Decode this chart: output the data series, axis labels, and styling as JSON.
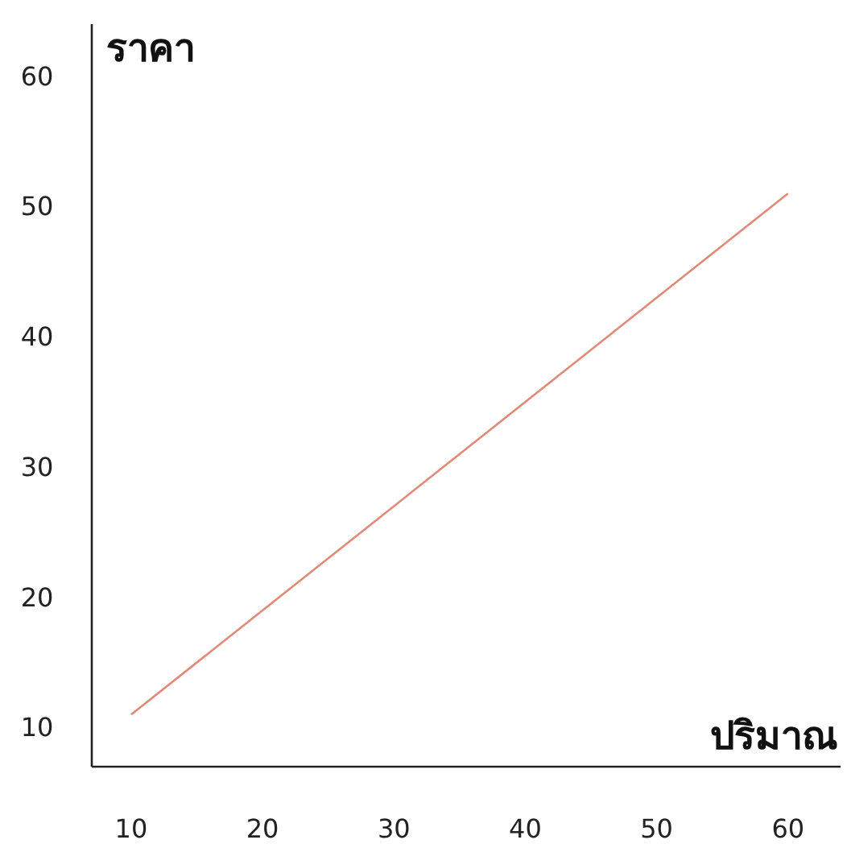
{
  "chart_data": {
    "type": "line",
    "ylabel": "ราคา",
    "xlabel": "ปริมาณ",
    "x": [
      10,
      60
    ],
    "series": [
      {
        "color": "#e08a78",
        "values": [
          11,
          51
        ]
      }
    ],
    "xlim": [
      7,
      64
    ],
    "ylim": [
      7,
      64
    ],
    "xticks": [
      10,
      20,
      30,
      40,
      50,
      60
    ],
    "yticks": [
      10,
      20,
      30,
      40,
      50,
      60
    ],
    "grid": false,
    "marker": "none",
    "line_style": "solid"
  }
}
